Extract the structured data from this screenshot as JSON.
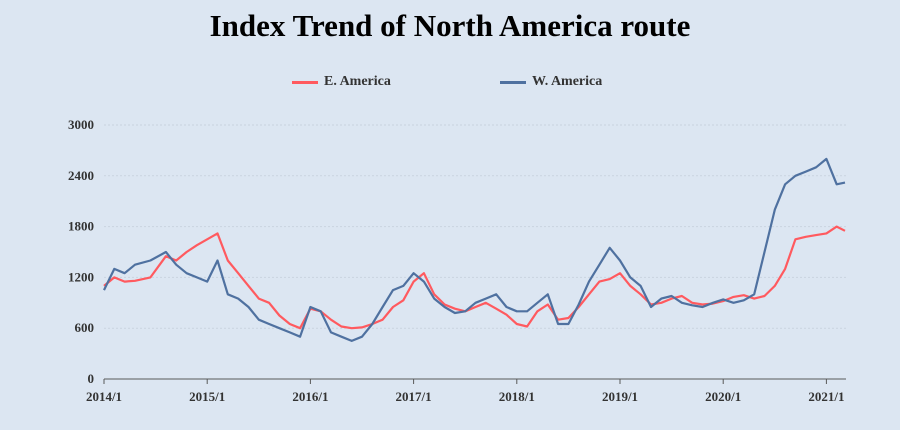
{
  "title": "Index Trend of North America route",
  "colors": {
    "east": "#ff5a5f",
    "west": "#4f71a0",
    "grid": "#c9d3df",
    "axis": "#595959"
  },
  "chart_data": {
    "type": "line",
    "title": "Index Trend of North America route",
    "legend_position": "top",
    "grid": true,
    "ylim": [
      0,
      3000
    ],
    "xlim": [
      "2014-01",
      "2021-03"
    ],
    "y_ticks": [
      "0",
      "600",
      "1200",
      "1800",
      "2400",
      "3000"
    ],
    "x_ticks": [
      "2014/1",
      "2015/1",
      "2016/1",
      "2017/1",
      "2018/1",
      "2019/1",
      "2020/1",
      "2021/1"
    ],
    "x_unit": "year",
    "x": [
      2014.0,
      2014.1,
      2014.2,
      2014.3,
      2014.45,
      2014.6,
      2014.7,
      2014.8,
      2014.9,
      2015.0,
      2015.1,
      2015.2,
      2015.3,
      2015.4,
      2015.5,
      2015.6,
      2015.7,
      2015.8,
      2015.9,
      2016.0,
      2016.1,
      2016.2,
      2016.3,
      2016.4,
      2016.5,
      2016.6,
      2016.7,
      2016.8,
      2016.9,
      2017.0,
      2017.1,
      2017.2,
      2017.3,
      2017.4,
      2017.5,
      2017.6,
      2017.7,
      2017.8,
      2017.9,
      2018.0,
      2018.1,
      2018.2,
      2018.3,
      2018.4,
      2018.5,
      2018.6,
      2018.7,
      2018.8,
      2018.9,
      2019.0,
      2019.1,
      2019.2,
      2019.3,
      2019.4,
      2019.5,
      2019.6,
      2019.7,
      2019.8,
      2019.9,
      2020.0,
      2020.1,
      2020.2,
      2020.3,
      2020.4,
      2020.5,
      2020.6,
      2020.7,
      2020.8,
      2020.9,
      2021.0,
      2021.1,
      2021.18
    ],
    "series": [
      {
        "name": "E. America",
        "color": "#ff5a5f",
        "values": [
          1100,
          1200,
          1150,
          1160,
          1200,
          1450,
          1400,
          1500,
          1580,
          1650,
          1720,
          1400,
          1250,
          1100,
          950,
          900,
          750,
          650,
          600,
          830,
          800,
          700,
          620,
          600,
          610,
          650,
          700,
          850,
          930,
          1150,
          1250,
          1000,
          880,
          830,
          800,
          850,
          900,
          830,
          760,
          650,
          620,
          800,
          880,
          700,
          720,
          850,
          1000,
          1150,
          1180,
          1250,
          1100,
          1000,
          880,
          900,
          950,
          980,
          900,
          880,
          890,
          920,
          970,
          990,
          950,
          980,
          1100,
          1300,
          1650,
          1680,
          1700,
          1720,
          1800,
          1750
        ]
      },
      {
        "name": "W. America",
        "color": "#4f71a0",
        "values": [
          1050,
          1300,
          1250,
          1350,
          1400,
          1500,
          1350,
          1250,
          1200,
          1150,
          1400,
          1000,
          950,
          850,
          700,
          650,
          600,
          550,
          500,
          850,
          800,
          550,
          500,
          450,
          500,
          650,
          850,
          1050,
          1100,
          1250,
          1150,
          950,
          850,
          780,
          800,
          900,
          950,
          1000,
          850,
          800,
          800,
          900,
          1000,
          650,
          650,
          880,
          1150,
          1350,
          1550,
          1400,
          1200,
          1100,
          850,
          950,
          980,
          900,
          870,
          850,
          900,
          940,
          900,
          930,
          1000,
          1500,
          2000,
          2300,
          2400,
          2450,
          2500,
          2600,
          2300,
          2320
        ]
      }
    ]
  }
}
